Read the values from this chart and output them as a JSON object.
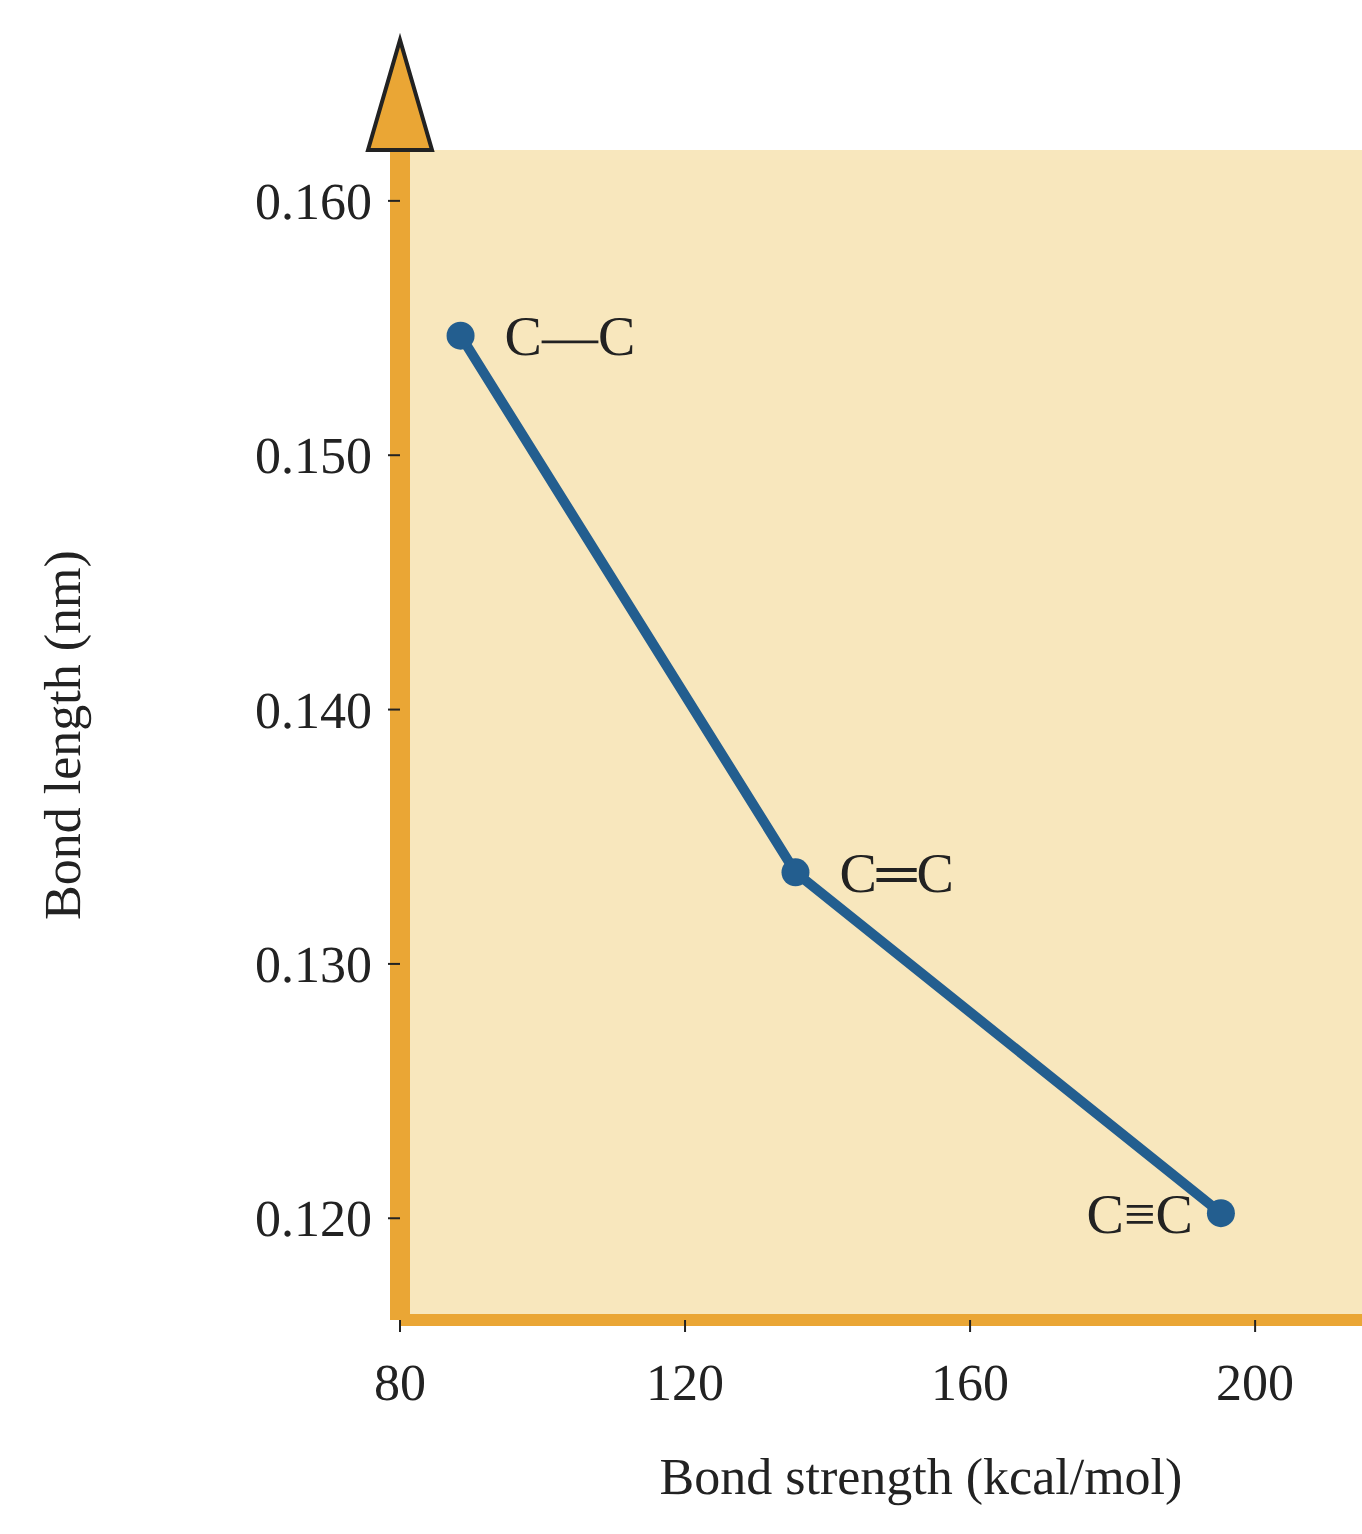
{
  "chart_data": {
    "type": "line",
    "xlabel": "Bond strength (kcal/mol)",
    "ylabel": "Bond length (nm)",
    "x": [
      88.5,
      135.5,
      195.2
    ],
    "series": [
      {
        "color": "#235e8f",
        "values": [
          0.1547,
          0.1336,
          0.1202
        ]
      }
    ],
    "xlim": [
      80,
      215
    ],
    "ylim": [
      0.116,
      0.162
    ],
    "xticks": [
      80,
      120,
      160,
      200
    ],
    "yticks": [
      {
        "value": 0.12,
        "label": "0.120"
      },
      {
        "value": 0.13,
        "label": "0.130"
      },
      {
        "value": 0.14,
        "label": "0.140"
      },
      {
        "value": 0.15,
        "label": "0.150"
      },
      {
        "value": 0.16,
        "label": "0.160"
      }
    ],
    "marker": "circle",
    "line_style": "solid",
    "grid": false,
    "annotations": [
      {
        "text": "C—C",
        "x": 88.5,
        "y": 0.1547
      },
      {
        "text": "C═C",
        "x": 135.5,
        "y": 0.1336
      },
      {
        "text": "C≡C",
        "x": 195.2,
        "y": 0.1202
      }
    ]
  }
}
